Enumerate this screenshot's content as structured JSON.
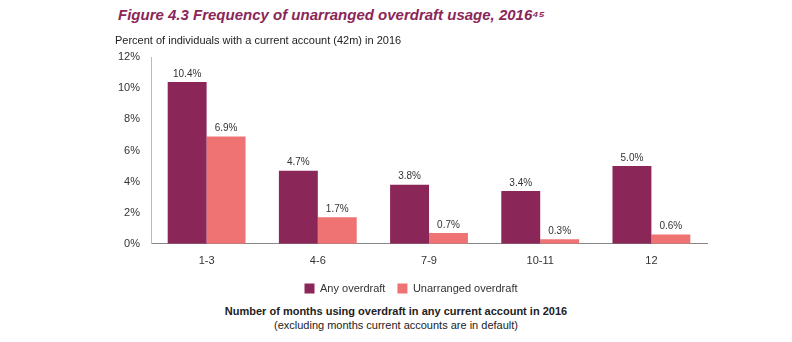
{
  "chart_data": {
    "type": "bar",
    "title": "Figure 4.3  Frequency of unarranged overdraft usage, 2016⁴⁵",
    "subtitle": "Percent of individuals with a current account (42m) in 2016",
    "x_label": [
      "Number of months using overdraft  in any current account in 2016",
      "(excluding months current accounts are in default)"
    ],
    "categories": [
      "1-3",
      "4-6",
      "7-9",
      "10-11",
      "12"
    ],
    "series": [
      {
        "name": "Any overdraft",
        "color": "#8b2658",
        "values": [
          10.4,
          4.7,
          3.8,
          3.4,
          5.0
        ],
        "value_labels": [
          "10.4%",
          "4.7%",
          "3.8%",
          "3.4%",
          "5.0%"
        ]
      },
      {
        "name": "Unarranged overdraft",
        "color": "#ef7373",
        "values": [
          6.9,
          1.7,
          0.7,
          0.3,
          0.6
        ],
        "value_labels": [
          "6.9%",
          "1.7%",
          "0.7%",
          "0.3%",
          "0.6%"
        ]
      }
    ],
    "ylim": [
      0,
      12
    ],
    "yticks": [
      {
        "value": 0,
        "label": "0%"
      },
      {
        "value": 2,
        "label": "2%"
      },
      {
        "value": 4,
        "label": "4%"
      },
      {
        "value": 6,
        "label": "6%"
      },
      {
        "value": 8,
        "label": "8%"
      },
      {
        "value": 10,
        "label": "10%"
      },
      {
        "value": 12,
        "label": "12%"
      }
    ],
    "grid": false,
    "legend": "bottom",
    "data_labels": true
  }
}
